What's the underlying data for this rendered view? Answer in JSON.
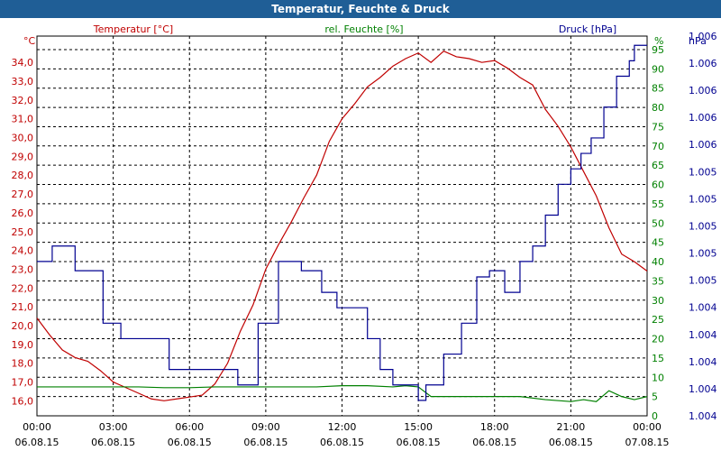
{
  "chart_data": {
    "type": "line",
    "title": "Temperatur, Feuchte & Druck",
    "colors": {
      "temp": "#c00000",
      "hum": "#008000",
      "press": "#000090",
      "title_bg": "#1f5e96"
    },
    "axes": {
      "temp": {
        "unit": "°C",
        "label": "Temperatur [°C]",
        "ylim": [
          15.2,
          35.4
        ],
        "ticks": [
          "16,0",
          "17,0",
          "18,0",
          "19,0",
          "20,0",
          "21,0",
          "22,0",
          "23,0",
          "24,0",
          "25,0",
          "26,0",
          "27,0",
          "28,0",
          "29,0",
          "30,0",
          "31,0",
          "32,0",
          "33,0",
          "34,0"
        ]
      },
      "hum": {
        "unit": "%",
        "label": "rel. Feuchte [%]",
        "ylim": [
          0,
          98.5
        ],
        "ticks": [
          "0",
          "5",
          "10",
          "15",
          "20",
          "25",
          "30",
          "35",
          "40",
          "45",
          "50",
          "55",
          "60",
          "65",
          "70",
          "75",
          "80",
          "85",
          "90",
          "95"
        ]
      },
      "press": {
        "unit": "hPa",
        "label": "Druck [hPa]",
        "ylim": [
          0,
          12.3
        ],
        "ticks": [
          "1.004",
          "1.004",
          "1.004",
          "1.004",
          "1.004",
          "1.005",
          "1.005",
          "1.005",
          "1.005",
          "1.005",
          "1.006",
          "1.006",
          "1.006",
          "1.006",
          "1.006"
        ]
      }
    },
    "x_ticks": [
      {
        "time": "00:00",
        "date": "06.08.15"
      },
      {
        "time": "03:00",
        "date": "06.08.15"
      },
      {
        "time": "06:00",
        "date": "06.08.15"
      },
      {
        "time": "09:00",
        "date": "06.08.15"
      },
      {
        "time": "12:00",
        "date": "06.08.15"
      },
      {
        "time": "15:00",
        "date": "06.08.15"
      },
      {
        "time": "18:00",
        "date": "06.08.15"
      },
      {
        "time": "21:00",
        "date": "06.08.15"
      },
      {
        "time": "00:00",
        "date": "07.08.15"
      }
    ],
    "x_range_hours": [
      0,
      24
    ],
    "series": [
      {
        "name": "Temperatur",
        "axis": "temp",
        "x": [
          0,
          0.5,
          1,
          1.5,
          2,
          2.5,
          3,
          3.5,
          4,
          4.5,
          5,
          5.5,
          6,
          6.5,
          7,
          7.5,
          8,
          8.5,
          9,
          9.5,
          10,
          10.5,
          11,
          11.5,
          12,
          12.5,
          13,
          13.5,
          14,
          14.5,
          15,
          15.5,
          16,
          16.5,
          17,
          17.5,
          18,
          18.5,
          19,
          19.5,
          20,
          20.5,
          21,
          21.5,
          22,
          22.5,
          23,
          23.5,
          24
        ],
        "values": [
          20.4,
          19.5,
          18.7,
          18.3,
          18.1,
          17.6,
          17.0,
          16.7,
          16.4,
          16.1,
          16.0,
          16.1,
          16.2,
          16.3,
          16.9,
          18.0,
          19.7,
          21.1,
          23.0,
          24.3,
          25.5,
          26.8,
          28.0,
          29.8,
          31.0,
          31.8,
          32.7,
          33.2,
          33.8,
          34.2,
          34.5,
          34.0,
          34.6,
          34.3,
          34.2,
          34.0,
          34.1,
          33.7,
          33.2,
          32.8,
          31.5,
          30.6,
          29.5,
          28.2,
          26.9,
          25.2,
          23.8,
          23.4,
          22.9
        ]
      },
      {
        "name": "rel. Feuchte",
        "axis": "hum",
        "x": [
          0,
          1,
          2,
          3,
          4,
          5,
          6,
          7,
          8,
          9,
          10,
          11,
          12,
          13,
          14,
          14.5,
          15,
          15.5,
          16,
          17,
          18,
          19,
          20,
          21,
          21.5,
          22,
          22.5,
          23,
          23.5,
          24
        ],
        "values": [
          7.5,
          7.5,
          7.5,
          7.5,
          7.5,
          7.3,
          7.3,
          7.5,
          7.5,
          7.5,
          7.5,
          7.5,
          7.8,
          7.8,
          7.5,
          7.8,
          7.5,
          5.0,
          5.0,
          5.0,
          5.0,
          5.0,
          4.2,
          3.7,
          4.2,
          3.7,
          6.5,
          5.0,
          4.2,
          5.0
        ]
      },
      {
        "name": "Druck",
        "axis": "press",
        "x": [
          0,
          0.6,
          1.2,
          1.5,
          2.6,
          3.3,
          3.6,
          5.2,
          6.0,
          7.9,
          8.7,
          9.5,
          10.4,
          11.2,
          11.8,
          12.5,
          13.0,
          13.5,
          14.0,
          15.0,
          15.3,
          16.0,
          16.7,
          17.3,
          17.8,
          18.4,
          19.0,
          19.5,
          20.0,
          20.5,
          21.0,
          21.4,
          21.8,
          22.3,
          22.8,
          23.3,
          23.5,
          24.0
        ],
        "values": [
          5.0,
          5.5,
          5.5,
          4.7,
          3.0,
          2.5,
          2.5,
          1.5,
          1.5,
          1.0,
          3.0,
          5.0,
          4.7,
          4.0,
          3.5,
          3.5,
          2.5,
          1.5,
          1.0,
          0.5,
          1.0,
          2.0,
          3.0,
          4.5,
          4.7,
          4.0,
          5.0,
          5.5,
          6.5,
          7.5,
          8.0,
          8.5,
          9.0,
          10.0,
          11.0,
          11.5,
          12.0,
          12.0
        ]
      }
    ]
  }
}
